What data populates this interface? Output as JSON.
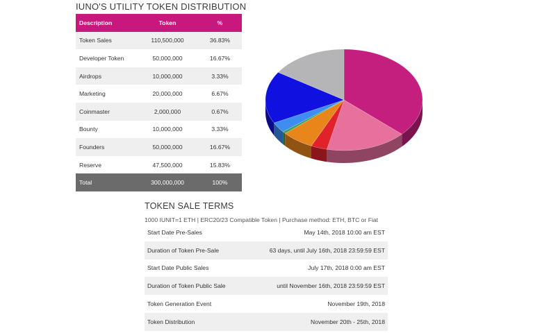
{
  "distribution": {
    "title": "IUNO'S UTILITY TOKEN DISTRIBUTION",
    "headers": {
      "desc": "Description",
      "token": "Token",
      "pct": "%"
    },
    "rows": [
      {
        "desc": "Token Sales",
        "token": "110,500,000",
        "pct": "36.83%"
      },
      {
        "desc": "Developer Token",
        "token": "50,000,000",
        "pct": "16.67%"
      },
      {
        "desc": "Airdrops",
        "token": "10,000,000",
        "pct": "3.33%"
      },
      {
        "desc": "Marketing",
        "token": "20,000,000",
        "pct": "6.67%"
      },
      {
        "desc": "Coinmaster",
        "token": "2,000,000",
        "pct": "0.67%"
      },
      {
        "desc": "Bounty",
        "token": "10,000,000",
        "pct": "3.33%"
      },
      {
        "desc": "Founders",
        "token": "50,000,000",
        "pct": "16.67%"
      },
      {
        "desc": "Reserve",
        "token": "47,500,000",
        "pct": "15.83%"
      }
    ],
    "total": {
      "desc": "Total",
      "token": "300,000,000",
      "pct": "100%"
    },
    "colors": {
      "header": "#c8177d",
      "total": "#6b6b6b",
      "shade": "#efefef"
    }
  },
  "chart_data": {
    "type": "pie",
    "style": "3d",
    "categories": [
      "Token Sales",
      "Developer Token",
      "Airdrops",
      "Marketing",
      "Coinmaster",
      "Bounty",
      "Founders",
      "Reserve"
    ],
    "values": [
      36.83,
      16.67,
      3.33,
      6.67,
      0.67,
      3.33,
      16.67,
      15.83
    ],
    "colors": [
      "#c41e7e",
      "#e7709d",
      "#e2222b",
      "#e8861c",
      "#3aa055",
      "#3d8ef0",
      "#1010e0",
      "#b5b5b8"
    ]
  },
  "terms": {
    "title": "TOKEN SALE TERMS",
    "subtitle": "1000 IUNIT=1 ETH | ERC20/23 Compatible Token | Purchase method: ETH, BTC or Fiat",
    "rows": [
      {
        "label": "Start Date Pre-Sales",
        "value": "May 14th, 2018 10:00 am EST"
      },
      {
        "label": "Duration of Token Pre-Sale",
        "value": "63 days, until July 16th, 2018 23:59:59 EST"
      },
      {
        "label": "Start Date Public Sales",
        "value": "July 17th, 2018 0:00 am EST"
      },
      {
        "label": "Duration of Token Public Sale",
        "value": "until November 16th, 2018 23:59:59 EST"
      },
      {
        "label": "Token Generation Event",
        "value": "November 19th, 2018"
      },
      {
        "label": "Token Distribution",
        "value": "November 20th - 25th, 2018"
      }
    ]
  }
}
